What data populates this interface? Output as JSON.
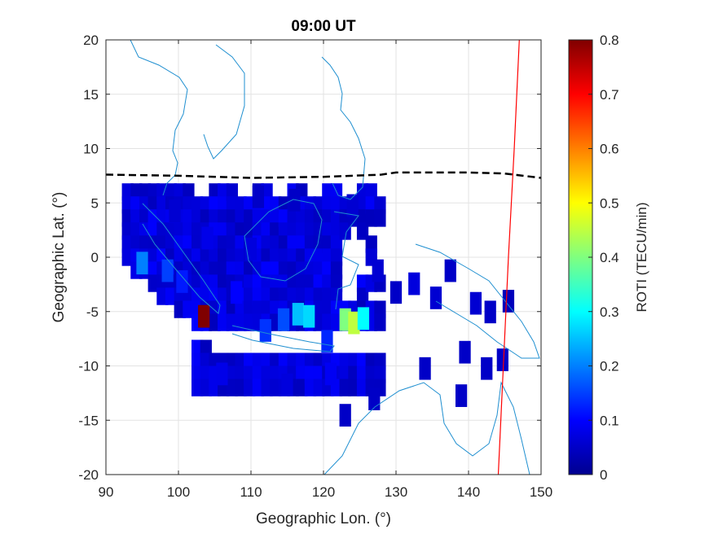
{
  "chart_data": {
    "type": "heatmap",
    "title": "09:00 UT",
    "xlabel": "Geographic Lon. (°)",
    "ylabel": "Geographic Lat. (°)",
    "xlim": [
      90,
      150
    ],
    "ylim": [
      -20,
      20
    ],
    "x_ticks": [
      "90",
      "100",
      "110",
      "120",
      "130",
      "140",
      "150"
    ],
    "y_ticks": [
      "20",
      "15",
      "10",
      "5",
      "0",
      "-5",
      "-10",
      "-15",
      "-20"
    ],
    "grid": true,
    "colorbar": {
      "label": "ROTI (TECU/min)",
      "colormap": "jet",
      "range": [
        0,
        0.8
      ],
      "ticks": [
        "0.8",
        "0.7",
        "0.6",
        "0.5",
        "0.4",
        "0.3",
        "0.2",
        "0.1",
        "0"
      ]
    },
    "magnetic_equator": [
      {
        "lon": 90,
        "lat": 7.6
      },
      {
        "lon": 100,
        "lat": 7.5
      },
      {
        "lon": 110,
        "lat": 7.3
      },
      {
        "lon": 120,
        "lat": 7.4
      },
      {
        "lon": 128,
        "lat": 7.6
      },
      {
        "lon": 130,
        "lat": 7.8
      },
      {
        "lon": 140,
        "lat": 7.8
      },
      {
        "lon": 145,
        "lat": 7.7
      },
      {
        "lon": 150,
        "lat": 7.3
      }
    ],
    "red_line": [
      {
        "lon": 147.0,
        "lat": 20
      },
      {
        "lon": 146.3,
        "lat": 10
      },
      {
        "lon": 145.5,
        "lat": 0
      },
      {
        "lon": 144.8,
        "lat": -10
      },
      {
        "lon": 144.1,
        "lat": -20
      }
    ],
    "roti_cells": [
      {
        "lon": 103.5,
        "lat": -5.2,
        "roti": 0.8
      },
      {
        "lon": 116.5,
        "lat": -5.0,
        "roti": 0.25
      },
      {
        "lon": 118.0,
        "lat": -5.2,
        "roti": 0.27
      },
      {
        "lon": 123.0,
        "lat": -5.5,
        "roti": 0.4
      },
      {
        "lon": 124.2,
        "lat": -5.8,
        "roti": 0.45
      },
      {
        "lon": 125.5,
        "lat": -5.4,
        "roti": 0.3
      },
      {
        "lon": 95.0,
        "lat": -0.3,
        "roti": 0.2
      },
      {
        "lon": 98.5,
        "lat": -1.0,
        "roti": 0.15
      },
      {
        "lon": 100.5,
        "lat": -2.0,
        "roti": 0.12
      },
      {
        "lon": 112.0,
        "lat": -6.5,
        "roti": 0.14
      },
      {
        "lon": 120.5,
        "lat": -7.5,
        "roti": 0.13
      },
      {
        "lon": 114.5,
        "lat": -5.5,
        "roti": 0.16
      },
      {
        "lon": 108.0,
        "lat": -3.0,
        "roti": 0.1
      },
      {
        "lon": 104.0,
        "lat": 2.0,
        "roti": 0.08
      },
      {
        "lon": 110.0,
        "lat": 1.0,
        "roti": 0.07
      },
      {
        "lon": 99.5,
        "lat": 4.5,
        "roti": 0.06
      },
      {
        "lon": 106.0,
        "lat": -10.5,
        "roti": 0.08
      },
      {
        "lon": 115.0,
        "lat": -11.5,
        "roti": 0.07
      },
      {
        "lon": 121.0,
        "lat": -10.5,
        "roti": 0.09
      },
      {
        "lon": 127.5,
        "lat": -1.0,
        "roti": 0.06
      },
      {
        "lon": 130.0,
        "lat": -3.0,
        "roti": 0.05
      },
      {
        "lon": 132.5,
        "lat": -2.2,
        "roti": 0.07
      },
      {
        "lon": 135.5,
        "lat": -3.5,
        "roti": 0.06
      },
      {
        "lon": 137.5,
        "lat": -1.0,
        "roti": 0.05
      },
      {
        "lon": 141.0,
        "lat": -4.0,
        "roti": 0.06
      },
      {
        "lon": 143.0,
        "lat": -4.8,
        "roti": 0.05
      },
      {
        "lon": 145.5,
        "lat": -3.8,
        "roti": 0.04
      },
      {
        "lon": 139.5,
        "lat": -8.5,
        "roti": 0.05
      },
      {
        "lon": 144.7,
        "lat": -9.2,
        "roti": 0.05
      },
      {
        "lon": 142.5,
        "lat": -10.0,
        "roti": 0.05
      },
      {
        "lon": 139.0,
        "lat": -12.5,
        "roti": 0.05
      },
      {
        "lon": 134.0,
        "lat": -10.0,
        "roti": 0.05
      },
      {
        "lon": 127.0,
        "lat": -12.8,
        "roti": 0.05
      },
      {
        "lon": 123.0,
        "lat": -14.3,
        "roti": 0.05
      },
      {
        "lon": 124.0,
        "lat": 5.0,
        "roti": 0.06
      },
      {
        "lon": 116.0,
        "lat": 5.5,
        "roti": 0.05
      },
      {
        "lon": 111.0,
        "lat": 5.8,
        "roti": 0.05
      }
    ]
  }
}
